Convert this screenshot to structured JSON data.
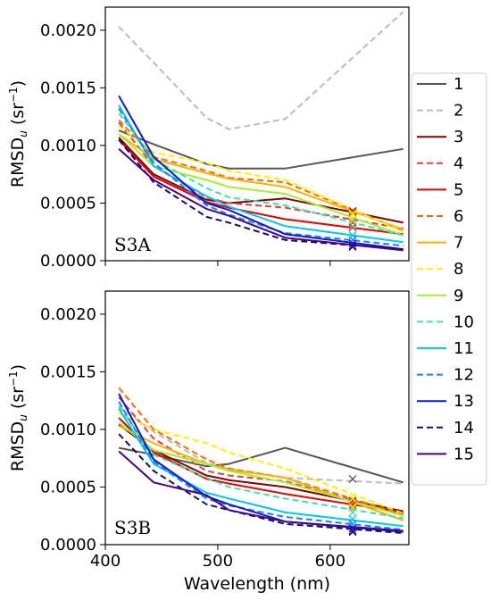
{
  "chart_data": {
    "type": "line",
    "x": [
      412,
      443,
      490,
      510,
      560,
      665
    ],
    "xlabel": "Wavelength (nm)",
    "ylabel": "RMSD_u (sr^-1)",
    "ylabel_main": "RMSD",
    "ylabel_sub": "u",
    "ylabel_unit_open": "(sr",
    "ylabel_unit_exp": "−1",
    "ylabel_unit_close": ")",
    "xlim": [
      400,
      670
    ],
    "ylim": [
      0,
      0.0022
    ],
    "x_ticks": [
      400,
      500,
      600
    ],
    "y_ticks": [
      "0.0000",
      "0.0005",
      "0.0010",
      "0.0015",
      "0.0020"
    ],
    "y_tick_values": [
      0,
      0.0005,
      0.001,
      0.0015,
      0.002
    ],
    "marker_x": 620,
    "legend_placement": "right",
    "series_style": [
      {
        "name": "1",
        "color": "#555555",
        "dash": "solid"
      },
      {
        "name": "2",
        "color": "#bbbbbb",
        "dash": "dashed"
      },
      {
        "name": "3",
        "color": "#800000",
        "dash": "solid"
      },
      {
        "name": "4",
        "color": "#e04040",
        "dash": "dashed"
      },
      {
        "name": "5",
        "color": "#e60000",
        "dash": "solid"
      },
      {
        "name": "6",
        "color": "#ff6a00",
        "dash": "dashed"
      },
      {
        "name": "7",
        "color": "#ffb000",
        "dash": "solid"
      },
      {
        "name": "8",
        "color": "#fff000",
        "dash": "dashed"
      },
      {
        "name": "9",
        "color": "#a6ee30",
        "dash": "solid"
      },
      {
        "name": "10",
        "color": "#40e0b0",
        "dash": "dashed"
      },
      {
        "name": "11",
        "color": "#00c8f0",
        "dash": "solid"
      },
      {
        "name": "12",
        "color": "#1e80ff",
        "dash": "dashed"
      },
      {
        "name": "13",
        "color": "#0a18d8",
        "dash": "solid"
      },
      {
        "name": "14",
        "color": "#101060",
        "dash": "dashed"
      },
      {
        "name": "15",
        "color": "#4b0082",
        "dash": "solid"
      }
    ],
    "panels": [
      {
        "label": "S3A",
        "series": [
          {
            "name": "1",
            "values": [
              0.00113,
              0.00101,
              0.00084,
              0.0008,
              0.0008,
              0.00097
            ],
            "marker": null
          },
          {
            "name": "2",
            "values": [
              0.00203,
              0.00172,
              0.00124,
              0.00114,
              0.00123,
              0.00216
            ],
            "marker": null
          },
          {
            "name": "3",
            "values": [
              0.00107,
              0.00075,
              0.00053,
              0.0005,
              0.00054,
              0.00033
            ],
            "marker": 0.00043
          },
          {
            "name": "4",
            "values": [
              0.0012,
              0.00082,
              0.00055,
              0.0005,
              0.00046,
              0.00028
            ],
            "marker": 0.00033
          },
          {
            "name": "5",
            "values": [
              0.00105,
              0.00073,
              0.00051,
              0.00046,
              0.00036,
              0.00023
            ],
            "marker": 0.00029
          },
          {
            "name": "6",
            "values": [
              0.00122,
              0.0009,
              0.00078,
              0.00072,
              0.00068,
              0.00026
            ],
            "marker": 0.00042
          },
          {
            "name": "7",
            "values": [
              0.0011,
              0.00088,
              0.00076,
              0.00071,
              0.00064,
              0.00027
            ],
            "marker": 0.00041
          },
          {
            "name": "8",
            "values": [
              0.00117,
              0.00094,
              0.00085,
              0.00078,
              0.0007,
              0.00025
            ],
            "marker": 0.0004
          },
          {
            "name": "9",
            "values": [
              0.0011,
              0.00082,
              0.0007,
              0.00064,
              0.00058,
              0.00022
            ],
            "marker": 0.00035
          },
          {
            "name": "10",
            "values": [
              0.00128,
              0.00088,
              0.00063,
              0.00055,
              0.00048,
              0.00022
            ],
            "marker": 0.0003
          },
          {
            "name": "11",
            "values": [
              0.00135,
              0.00082,
              0.00056,
              0.00047,
              0.0003,
              0.00016
            ],
            "marker": 0.00022
          },
          {
            "name": "12",
            "values": [
              0.00132,
              0.00085,
              0.00048,
              0.0004,
              0.00024,
              0.00013
            ],
            "marker": 0.00018
          },
          {
            "name": "13",
            "values": [
              0.00143,
              0.0009,
              0.0005,
              0.00044,
              0.00023,
              0.0001
            ],
            "marker": 0.00015
          },
          {
            "name": "14",
            "values": [
              0.00105,
              0.00068,
              0.00038,
              0.00033,
              0.00018,
              0.0001
            ],
            "marker": 0.00012
          },
          {
            "name": "15",
            "values": [
              0.00097,
              0.0007,
              0.00045,
              0.00039,
              0.0002,
              9e-05
            ],
            "marker": 0.00013
          }
        ]
      },
      {
        "label": "S3B",
        "series": [
          {
            "name": "1",
            "values": [
              0.00084,
              0.00078,
              0.00068,
              0.0007,
              0.00084,
              0.00054
            ],
            "marker": 0.00057
          },
          {
            "name": "2",
            "values": [
              0.0012,
              0.00098,
              0.00071,
              0.00066,
              0.00058,
              0.00053
            ],
            "marker": null
          },
          {
            "name": "3",
            "values": [
              0.00104,
              0.00082,
              0.0006,
              0.00056,
              0.0005,
              0.00029
            ],
            "marker": 0.00038
          },
          {
            "name": "4",
            "values": [
              0.00128,
              0.00092,
              0.00064,
              0.0006,
              0.00055,
              0.00026
            ],
            "marker": 0.00036
          },
          {
            "name": "5",
            "values": [
              0.0011,
              0.0008,
              0.00057,
              0.00053,
              0.00044,
              0.00028
            ],
            "marker": 0.00034
          },
          {
            "name": "6",
            "values": [
              0.00136,
              0.001,
              0.00074,
              0.00066,
              0.00058,
              0.00026
            ],
            "marker": 0.00037
          },
          {
            "name": "7",
            "values": [
              0.00103,
              0.00088,
              0.0007,
              0.00065,
              0.00058,
              0.00021
            ],
            "marker": 0.00033
          },
          {
            "name": "8",
            "values": [
              0.00114,
              0.001,
              0.00088,
              0.0008,
              0.00066,
              0.00027
            ],
            "marker": 0.0004
          },
          {
            "name": "9",
            "values": [
              0.00106,
              0.00082,
              0.0007,
              0.00064,
              0.00054,
              0.00025
            ],
            "marker": 0.00032
          },
          {
            "name": "10",
            "values": [
              0.0012,
              0.00078,
              0.00058,
              0.0005,
              0.0004,
              0.00023
            ],
            "marker": 0.00028
          },
          {
            "name": "11",
            "values": [
              0.00118,
              0.0007,
              0.00045,
              0.0004,
              0.00028,
              0.00016
            ],
            "marker": 0.00022
          },
          {
            "name": "12",
            "values": [
              0.00124,
              0.00072,
              0.0004,
              0.00034,
              0.00024,
              0.00013
            ],
            "marker": 0.00018
          },
          {
            "name": "13",
            "values": [
              0.00131,
              0.00074,
              0.00042,
              0.00035,
              0.0002,
              0.00012
            ],
            "marker": 0.00014
          },
          {
            "name": "14",
            "values": [
              0.00096,
              0.00064,
              0.00035,
              0.0003,
              0.00018,
              0.0001
            ],
            "marker": 0.00011
          },
          {
            "name": "15",
            "values": [
              0.00081,
              0.00054,
              0.00043,
              0.0003,
              0.0002,
              0.00011
            ],
            "marker": 0.00012
          }
        ]
      }
    ]
  }
}
